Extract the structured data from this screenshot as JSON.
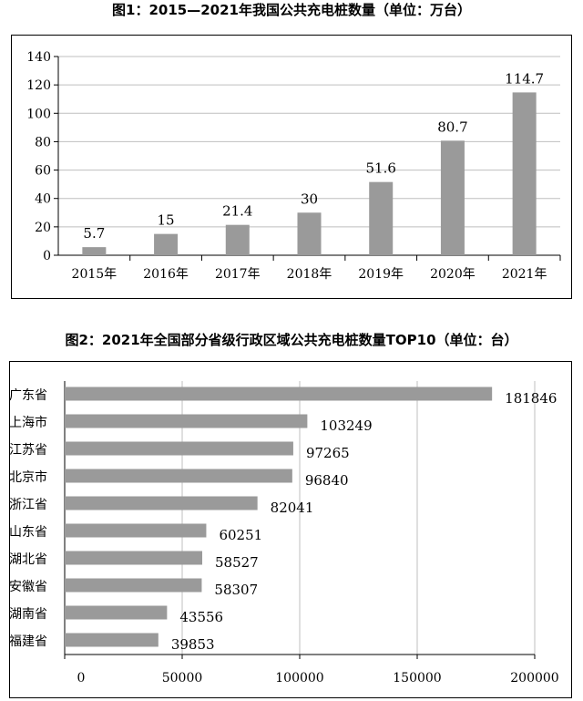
{
  "chart_data": [
    {
      "type": "bar",
      "title": "图1：2015—2021年我国公共充电桩数量（单位：万台）",
      "categories": [
        "2015年",
        "2016年",
        "2017年",
        "2018年",
        "2019年",
        "2020年",
        "2021年"
      ],
      "values": [
        5.7,
        15,
        21.4,
        30,
        51.6,
        80.7,
        114.7
      ],
      "value_labels": [
        "5.7",
        "15",
        "21.4",
        "30",
        "51.6",
        "80.7",
        "114.7"
      ],
      "ylim": [
        0,
        140
      ],
      "yticks": [
        "0",
        "20",
        "40",
        "60",
        "80",
        "100",
        "120",
        "140"
      ],
      "grid": true,
      "bar_color": "#9a9a9a"
    },
    {
      "type": "bar",
      "orientation": "horizontal",
      "title": "图2：2021年全国部分省级行政区域公共充电桩数量TOP10（单位：台）",
      "categories": [
        "广东省",
        "上海市",
        "江苏省",
        "北京市",
        "浙江省",
        "山东省",
        "湖北省",
        "安徽省",
        "湖南省",
        "福建省"
      ],
      "values": [
        181846,
        103249,
        97265,
        96840,
        82041,
        60251,
        58527,
        58307,
        43556,
        39853
      ],
      "value_labels": [
        "181846",
        "103249",
        "97265",
        "96840",
        "82041",
        "60251",
        "58527",
        "58307",
        "43556",
        "39853"
      ],
      "xlim": [
        0,
        200000
      ],
      "xticks": [
        "0",
        "50000",
        "100000",
        "150000",
        "200000"
      ],
      "grid": true,
      "bar_color": "#9a9a9a"
    }
  ]
}
